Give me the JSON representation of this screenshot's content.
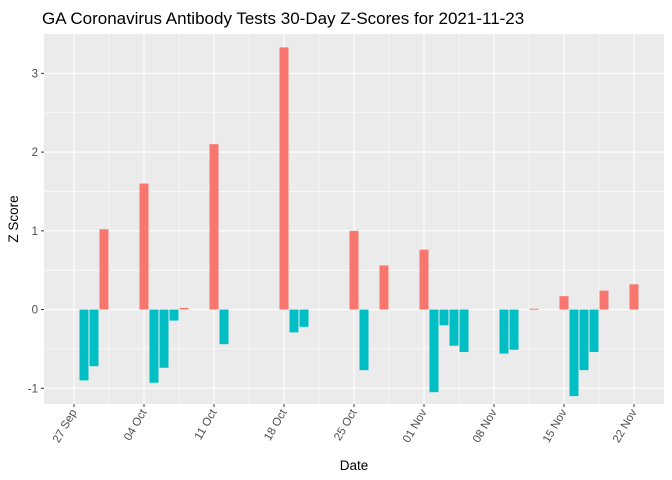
{
  "chart_data": {
    "type": "bar",
    "title": "GA Coronavirus Antibody Tests 30-Day Z-Scores for 2021-11-23",
    "xlabel": "Date",
    "ylabel": "Z Score",
    "ylim": [
      -1.2,
      3.5
    ],
    "yticks": [
      -1,
      0,
      1,
      2,
      3
    ],
    "xlim": [
      "2021-09-24",
      "2021-11-25"
    ],
    "xticks": [
      {
        "date": "2021-09-27",
        "label": "27 Sep"
      },
      {
        "date": "2021-10-04",
        "label": "04 Oct"
      },
      {
        "date": "2021-10-11",
        "label": "11 Oct"
      },
      {
        "date": "2021-10-18",
        "label": "18 Oct"
      },
      {
        "date": "2021-10-25",
        "label": "25 Oct"
      },
      {
        "date": "2021-11-01",
        "label": "01 Nov"
      },
      {
        "date": "2021-11-08",
        "label": "08 Nov"
      },
      {
        "date": "2021-11-15",
        "label": "15 Nov"
      },
      {
        "date": "2021-11-22",
        "label": "22 Nov"
      }
    ],
    "grid": true,
    "legend": "none",
    "colors": {
      "positive": "#f8766d",
      "negative": "#00bfc4",
      "panel": "#ebebeb",
      "grid": "#ffffff"
    },
    "dates": [
      "2021-09-28",
      "2021-09-29",
      "2021-09-30",
      "2021-10-01",
      "2021-10-02",
      "2021-10-03",
      "2021-10-04",
      "2021-10-05",
      "2021-10-06",
      "2021-10-07",
      "2021-10-08",
      "2021-10-09",
      "2021-10-10",
      "2021-10-11",
      "2021-10-12",
      "2021-10-13",
      "2021-10-14",
      "2021-10-15",
      "2021-10-16",
      "2021-10-17",
      "2021-10-18",
      "2021-10-19",
      "2021-10-20",
      "2021-10-21",
      "2021-10-22",
      "2021-10-23",
      "2021-10-24",
      "2021-10-25",
      "2021-10-26",
      "2021-10-27",
      "2021-10-28",
      "2021-10-29",
      "2021-10-30",
      "2021-10-31",
      "2021-11-01",
      "2021-11-02",
      "2021-11-03",
      "2021-11-04",
      "2021-11-05",
      "2021-11-06",
      "2021-11-07",
      "2021-11-08",
      "2021-11-09",
      "2021-11-10",
      "2021-11-11",
      "2021-11-12",
      "2021-11-13",
      "2021-11-14",
      "2021-11-15",
      "2021-11-16",
      "2021-11-17",
      "2021-11-18",
      "2021-11-19",
      "2021-11-20",
      "2021-11-21",
      "2021-11-22"
    ],
    "values": [
      -0.9,
      -0.72,
      1.02,
      0,
      0,
      0,
      1.6,
      -0.93,
      -0.74,
      -0.14,
      0.02,
      0,
      0,
      2.1,
      -0.44,
      0,
      0,
      0,
      0,
      0,
      3.33,
      -0.29,
      -0.22,
      0,
      0,
      0,
      0,
      1.0,
      -0.77,
      0,
      0.56,
      0,
      0,
      0,
      0.76,
      -1.05,
      -0.2,
      -0.46,
      -0.54,
      0,
      0,
      0,
      -0.56,
      -0.51,
      0,
      0.01,
      0,
      0,
      0.17,
      -1.1,
      -0.77,
      -0.54,
      0.24,
      0,
      0,
      0.32
    ]
  }
}
